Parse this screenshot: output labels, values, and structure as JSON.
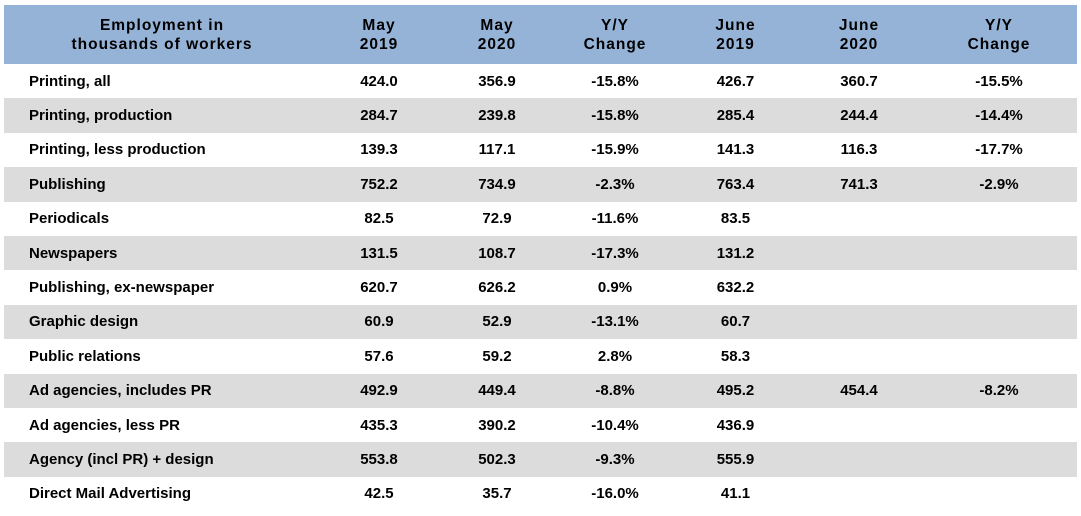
{
  "headers": [
    {
      "l1": "Employment in",
      "l2": "thousands of workers"
    },
    {
      "l1": "May",
      "l2": "2019"
    },
    {
      "l1": "May",
      "l2": "2020"
    },
    {
      "l1": "Y/Y",
      "l2": "Change"
    },
    {
      "l1": "June",
      "l2": "2019"
    },
    {
      "l1": "June",
      "l2": "2020"
    },
    {
      "l1": "Y/Y",
      "l2": "Change"
    }
  ],
  "rows": [
    [
      "Printing, all",
      "424.0",
      "356.9",
      "-15.8%",
      "426.7",
      "360.7",
      "-15.5%"
    ],
    [
      "Printing, production",
      "284.7",
      "239.8",
      "-15.8%",
      "285.4",
      "244.4",
      "-14.4%"
    ],
    [
      "Printing, less production",
      "139.3",
      "117.1",
      "-15.9%",
      "141.3",
      "116.3",
      "-17.7%"
    ],
    [
      "Publishing",
      "752.2",
      "734.9",
      "-2.3%",
      "763.4",
      "741.3",
      "-2.9%"
    ],
    [
      "Periodicals",
      "82.5",
      "72.9",
      "-11.6%",
      "83.5",
      "",
      ""
    ],
    [
      "Newspapers",
      "131.5",
      "108.7",
      "-17.3%",
      "131.2",
      "",
      ""
    ],
    [
      "Publishing, ex-newspaper",
      "620.7",
      "626.2",
      "0.9%",
      "632.2",
      "",
      ""
    ],
    [
      "Graphic design",
      "60.9",
      "52.9",
      "-13.1%",
      "60.7",
      "",
      ""
    ],
    [
      "Public relations",
      "57.6",
      "59.2",
      "2.8%",
      "58.3",
      "",
      ""
    ],
    [
      "Ad agencies, includes PR",
      "492.9",
      "449.4",
      "-8.8%",
      "495.2",
      "454.4",
      "-8.2%"
    ],
    [
      "Ad agencies, less PR",
      "435.3",
      "390.2",
      "-10.4%",
      "436.9",
      "",
      ""
    ],
    [
      "Agency (incl PR) + design",
      "553.8",
      "502.3",
      "-9.3%",
      "555.9",
      "",
      ""
    ],
    [
      "Direct Mail Advertising",
      "42.5",
      "35.7",
      "-16.0%",
      "41.1",
      "",
      ""
    ]
  ],
  "colors": {
    "header_bg": "#95b3d7",
    "row_shade": "#dcdcdc",
    "row_white": "#ffffff"
  }
}
